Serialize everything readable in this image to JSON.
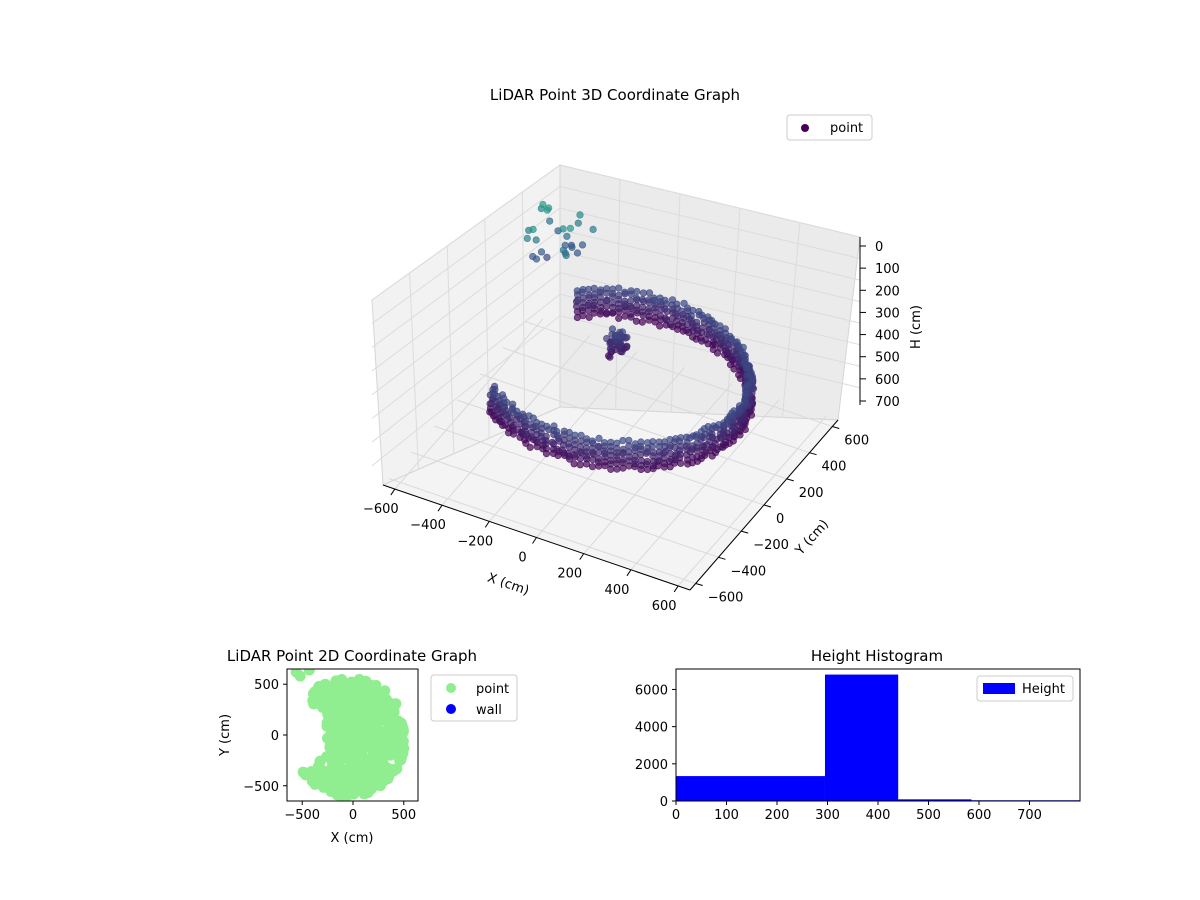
{
  "chart_data": [
    {
      "type": "scatter",
      "projection": "3d",
      "title": "LiDAR Point 3D Coordinate Graph",
      "xlabel": "X (cm)",
      "ylabel": "Y (cm)",
      "zlabel": "H (cm)",
      "xlim": [
        -650,
        650
      ],
      "ylim": [
        -650,
        650
      ],
      "zlim": [
        0,
        780
      ],
      "z_inverted": true,
      "x_ticks": [
        "−600",
        "−400",
        "−200",
        "0",
        "200",
        "400",
        "600"
      ],
      "y_ticks": [
        "−600",
        "−400",
        "−200",
        "0",
        "200",
        "400",
        "600"
      ],
      "z_ticks": [
        "0",
        "100",
        "200",
        "300",
        "400",
        "500",
        "600",
        "700"
      ],
      "legend": {
        "placement": "upper-right",
        "entries": [
          {
            "label": "point",
            "color": "#44015a"
          }
        ]
      },
      "colormap": "viridis",
      "series": [
        {
          "name": "point",
          "shape": "partial ring of points, radius about 520 cm, open toward the -X side",
          "height_range": [
            300,
            440
          ],
          "note": "dense wall of points; a few outliers with lower heights near the -X/+Y corner"
        }
      ]
    },
    {
      "type": "scatter",
      "title": "LiDAR Point 2D Coordinate Graph",
      "xlabel": "X (cm)",
      "ylabel": "Y (cm)",
      "xlim": [
        -650,
        640
      ],
      "ylim": [
        -650,
        650
      ],
      "x_ticks": [
        "−500",
        "0",
        "500"
      ],
      "y_ticks": [
        "−500",
        "0",
        "500"
      ],
      "legend": {
        "placement": "outside-right",
        "entries": [
          {
            "label": "point",
            "color": "#90ee90"
          },
          {
            "label": "wall",
            "color": "#0000ff"
          }
        ]
      },
      "series": [
        {
          "name": "point",
          "color": "#90ee90",
          "shape": "filled disc of radius about 540 cm with a wedge missing on the -X side"
        },
        {
          "name": "wall",
          "color": "#0000ff",
          "count": 0
        }
      ]
    },
    {
      "type": "bar",
      "subtype": "histogram",
      "title": "Height Histogram",
      "xlim": [
        0,
        800
      ],
      "ylim": [
        0,
        7100
      ],
      "x_ticks": [
        "0",
        "100",
        "200",
        "300",
        "400",
        "500",
        "600",
        "700"
      ],
      "y_ticks": [
        "0",
        "2000",
        "4000",
        "6000"
      ],
      "legend": {
        "placement": "upper-right",
        "entries": [
          {
            "label": "Height",
            "color": "#0000ff"
          }
        ]
      },
      "series": [
        {
          "name": "Height",
          "color": "#0000ff",
          "bins": [
            {
              "x0": 0,
              "x1": 295,
              "count": 1340
            },
            {
              "x0": 295,
              "x1": 440,
              "count": 6800
            },
            {
              "x0": 440,
              "x1": 585,
              "count": 90
            },
            {
              "x0": 585,
              "x1": 800,
              "count": 40
            }
          ]
        }
      ]
    }
  ]
}
